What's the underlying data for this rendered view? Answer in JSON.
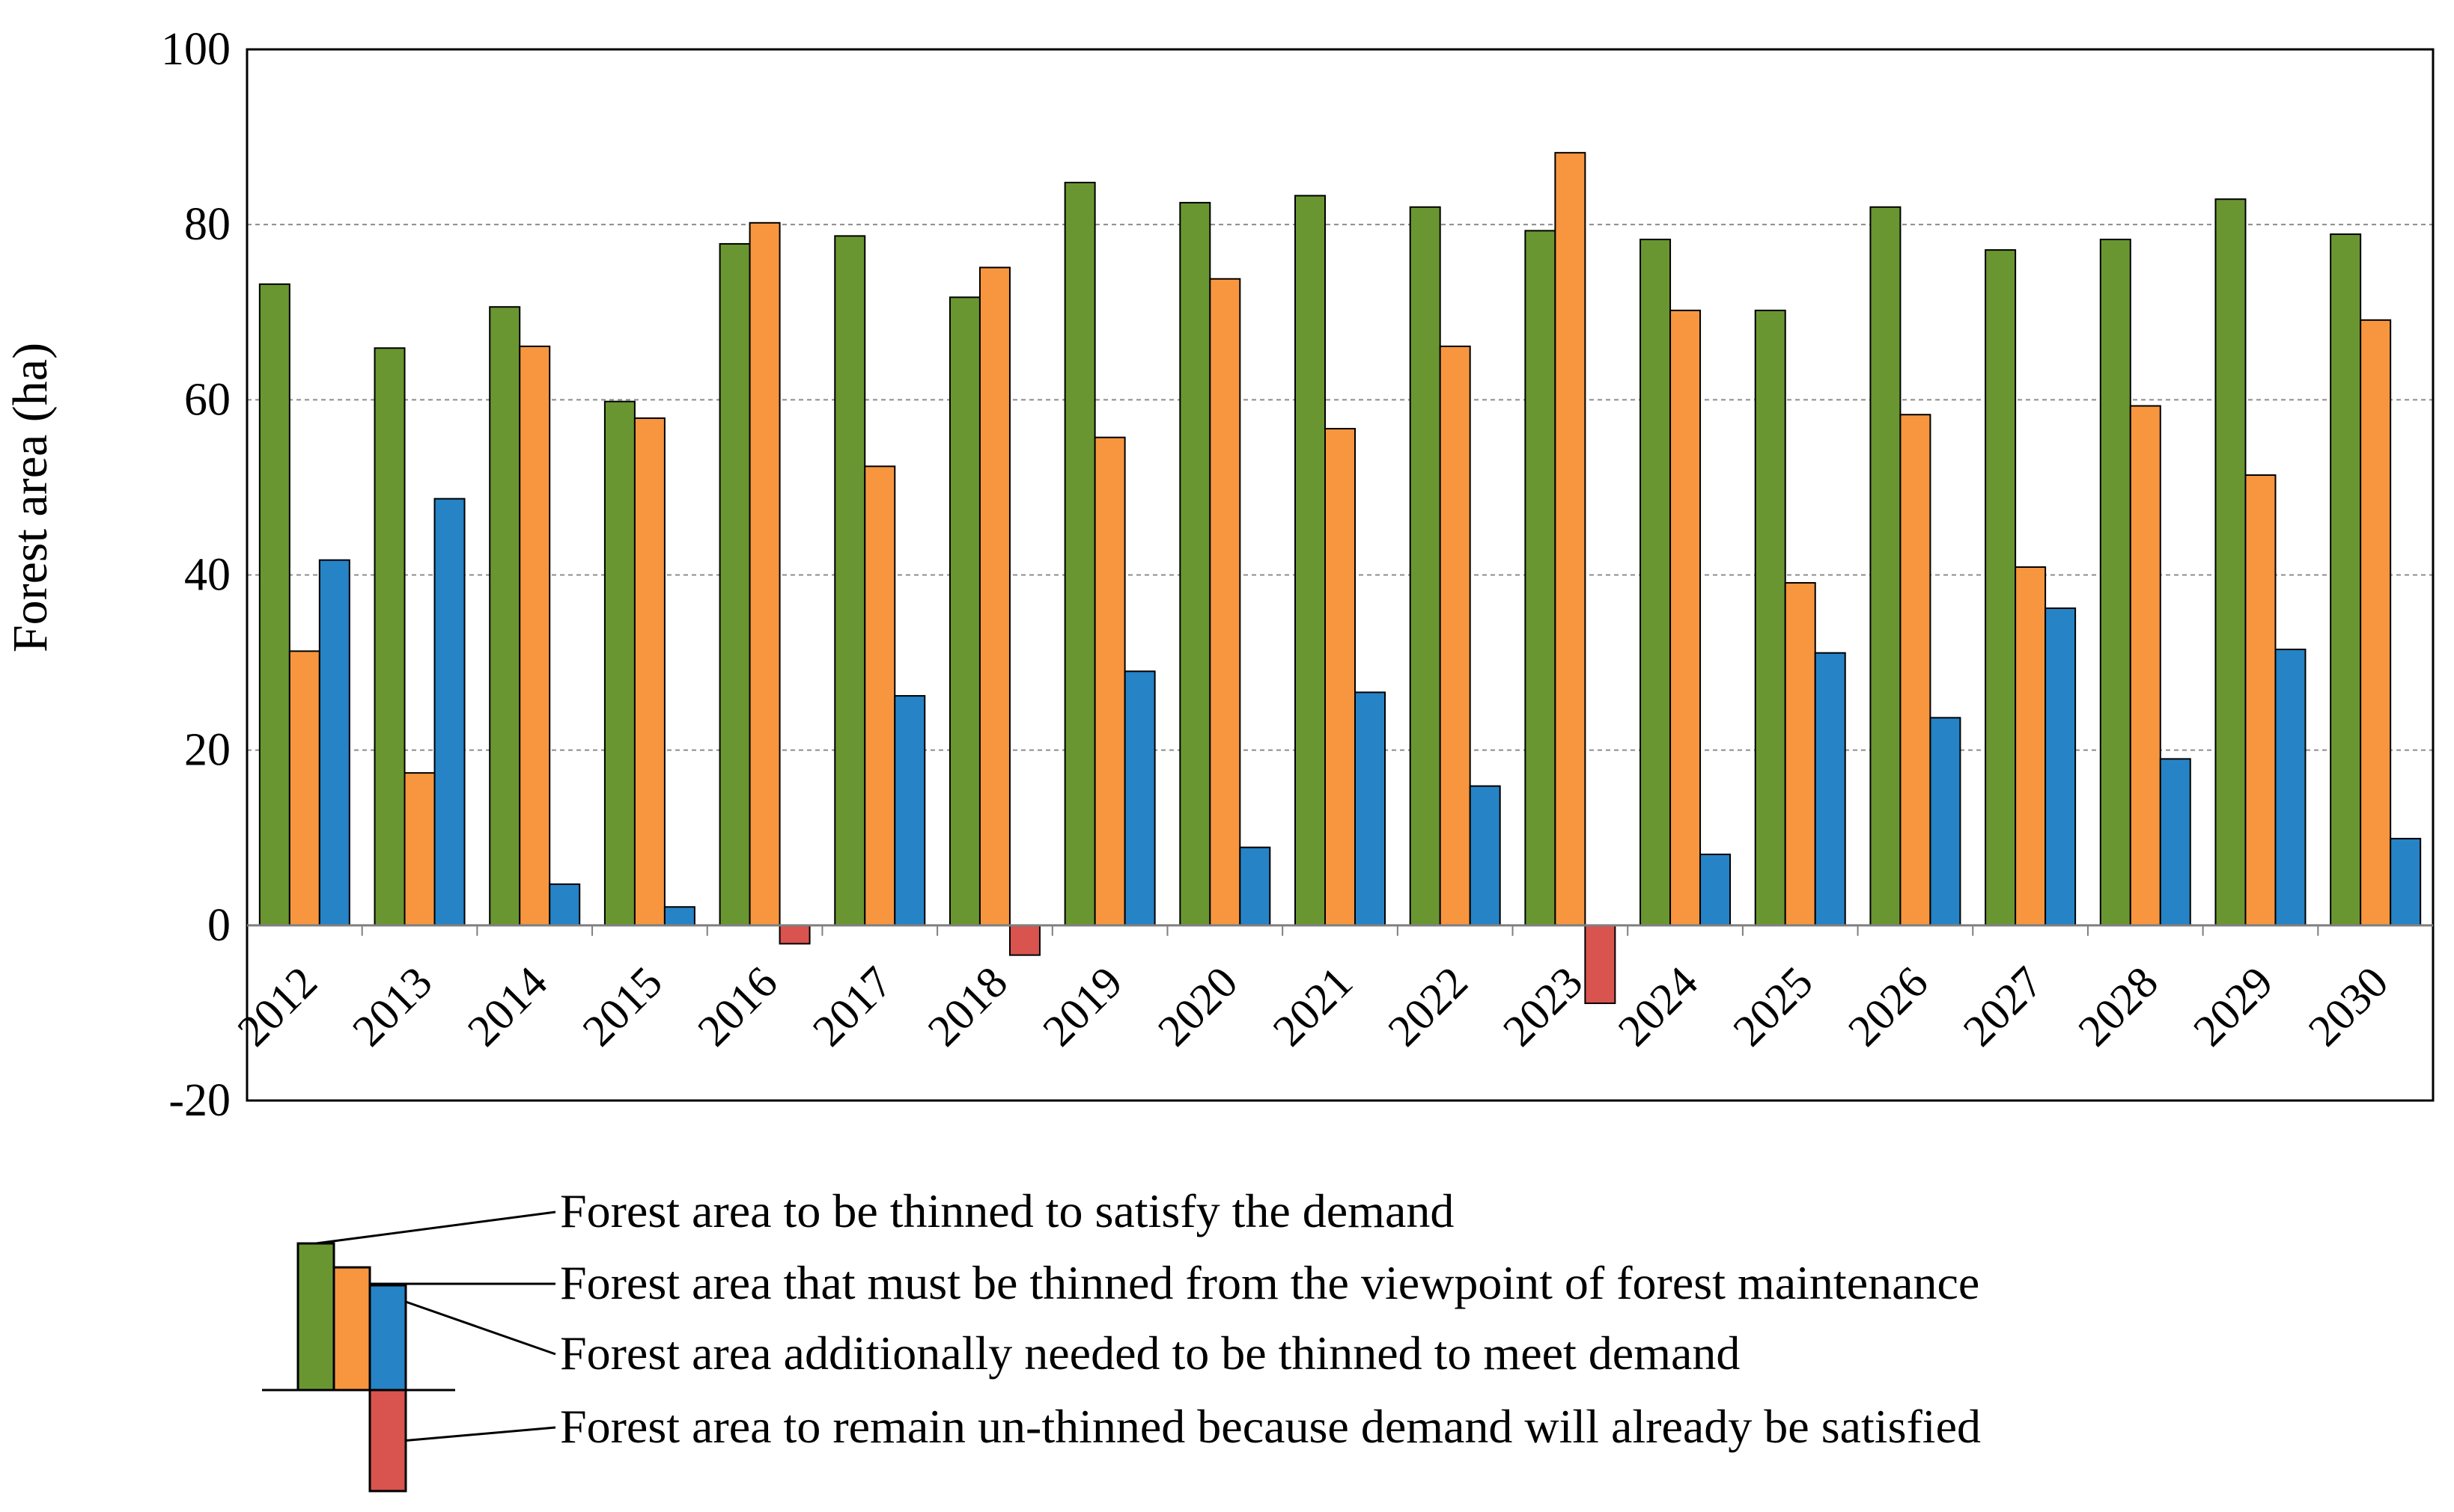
{
  "chart_data": {
    "type": "bar",
    "title": "",
    "xlabel": "",
    "ylabel": "Forest area (ha)",
    "ylim": [
      -20,
      100
    ],
    "yticks": [
      -20,
      0,
      20,
      40,
      60,
      80,
      100
    ],
    "grid": true,
    "legend_position": "bottom",
    "categories": [
      "2012",
      "2013",
      "2014",
      "2015",
      "2016",
      "2017",
      "2018",
      "2019",
      "2020",
      "2021",
      "2022",
      "2023",
      "2024",
      "2025",
      "2026",
      "2027",
      "2028",
      "2029",
      "2030"
    ],
    "series": [
      {
        "name": "Forest area to be thinned to satisfy the demand",
        "color": "#6A9631",
        "values": [
          73.2,
          65.9,
          70.6,
          59.8,
          77.8,
          78.7,
          71.7,
          84.8,
          82.5,
          83.3,
          82.0,
          79.3,
          78.3,
          70.2,
          82.0,
          77.1,
          78.3,
          82.9,
          78.9
        ]
      },
      {
        "name": "Forest area that must be thinned from the viewpoint of forest maintenance",
        "color": "#F7963F",
        "values": [
          31.3,
          17.4,
          66.1,
          57.9,
          80.2,
          52.4,
          75.1,
          55.7,
          73.8,
          56.7,
          66.1,
          88.2,
          70.2,
          39.1,
          58.3,
          40.9,
          59.3,
          51.4,
          69.1
        ]
      },
      {
        "name": "Forest area additionally needed to be thinned to meet demand",
        "color": "#2683C6",
        "values": [
          41.7,
          48.7,
          4.7,
          2.1,
          null,
          26.2,
          null,
          29.0,
          8.9,
          26.6,
          15.9,
          null,
          8.1,
          31.1,
          23.7,
          36.2,
          19.0,
          31.5,
          9.9
        ]
      },
      {
        "name": "Forest area to remain un-thinned because demand will already be satisfied",
        "color": "#D9534F",
        "values": [
          null,
          null,
          null,
          null,
          -2.1,
          null,
          -3.4,
          null,
          null,
          null,
          null,
          -8.9,
          null,
          null,
          null,
          null,
          null,
          null,
          null
        ]
      }
    ]
  }
}
